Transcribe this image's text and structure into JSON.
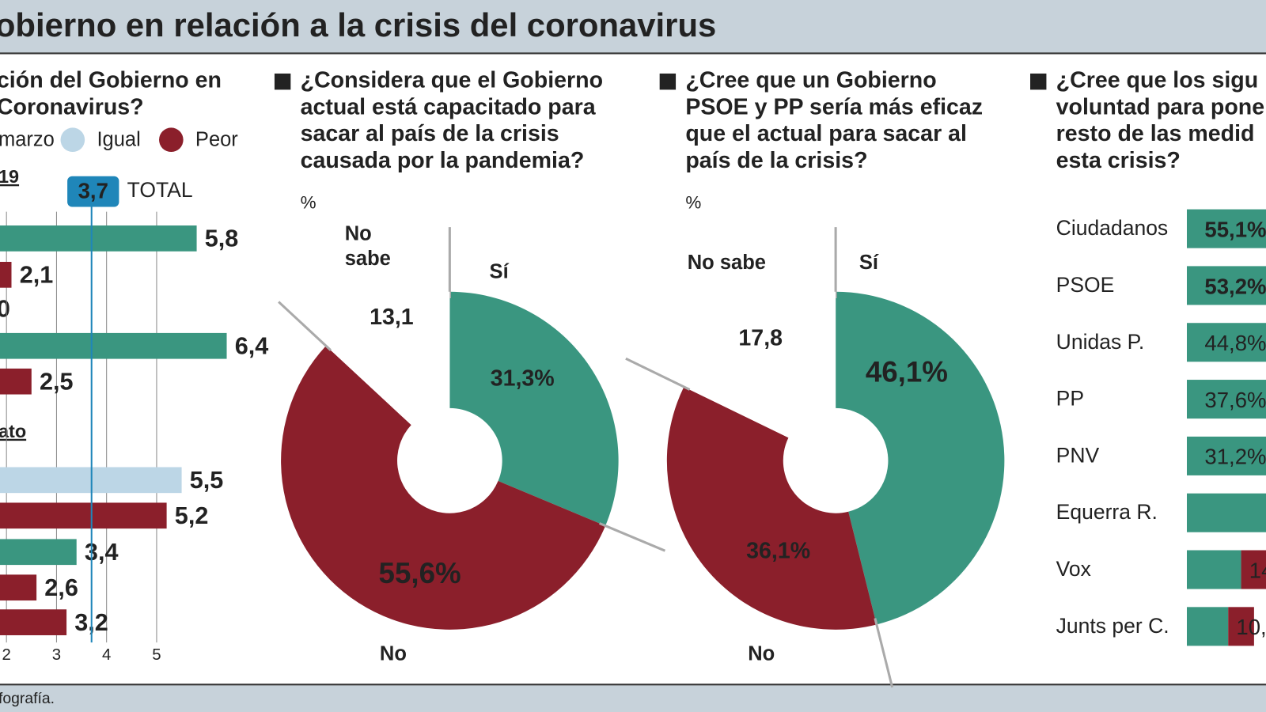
{
  "header": {
    "title": "obierno en relación a la crisis del coronavirus"
  },
  "footer": {
    "source": "fografía."
  },
  "chart_data": [
    {
      "type": "hbar",
      "title_lines": [
        "ción del Gobierno en",
        "Coronavirus?"
      ],
      "legend": [
        {
          "name": "marzo",
          "color": "#3a9680"
        },
        {
          "name": "Igual",
          "color": "#bcd6e6"
        },
        {
          "name": "Peor",
          "color": "#8b1f2b"
        }
      ],
      "section_labels": [
        "19",
        "ato"
      ],
      "annotations": [
        "0"
      ],
      "categories": [
        null,
        null,
        null,
        null,
        null,
        null,
        null,
        null,
        null
      ],
      "values": [
        5.8,
        2.1,
        6.4,
        2.5,
        5.5,
        5.2,
        3.4,
        2.6,
        3.2
      ],
      "value_labels": [
        "5,8",
        "2,1",
        "6,4",
        "2,5",
        "5,5",
        "5,2",
        "3,4",
        "2,6",
        "3,2"
      ],
      "colors": [
        "#3a9680",
        "#8b1f2b",
        "#3a9680",
        "#8b1f2b",
        "#bcd6e6",
        "#8b1f2b",
        "#3a9680",
        "#8b1f2b",
        "#8b1f2b"
      ],
      "xlim": [
        0,
        7
      ],
      "xticks": [
        2,
        3,
        4,
        5
      ],
      "grid": true,
      "reference": {
        "value": 3.7,
        "label": "3,7",
        "text": "TOTAL",
        "color": "#1f86b9"
      }
    },
    {
      "type": "donut",
      "title_lines": [
        "¿Considera que el Gobierno",
        "actual está capacitado para",
        "sacar al país de la crisis",
        "causada por la pandemia?"
      ],
      "unit": "%",
      "categories": [
        "Sí",
        "No",
        "No sabe"
      ],
      "values": [
        31.3,
        55.6,
        13.1
      ],
      "value_labels": [
        "31,3%",
        "55,6%",
        "13,1"
      ],
      "colors": [
        "#3a9680",
        "#8b1f2b",
        null
      ]
    },
    {
      "type": "donut",
      "title_lines": [
        "¿Cree que un Gobierno",
        "PSOE y PP sería más eficaz",
        "que el actual para sacar al",
        "país de la crisis?"
      ],
      "unit": "%",
      "categories": [
        "Sí",
        "No",
        "No sabe"
      ],
      "values": [
        46.1,
        36.1,
        17.8
      ],
      "value_labels": [
        "46,1%",
        "36,1%",
        "17,8"
      ],
      "colors": [
        "#3a9680",
        "#8b1f2b",
        null
      ]
    },
    {
      "type": "stacked_hbar",
      "title_lines": [
        "¿Cree que los sigu",
        "voluntad para pone",
        "resto de las medid",
        "esta crisis?"
      ],
      "categories": [
        "Ciudadanos",
        "PSOE",
        "Unidas P.",
        "PP",
        "PNV",
        "Equerra R.",
        "Vox",
        "Junts per C."
      ],
      "series": [
        {
          "color": "#3a9680",
          "values": [
            55.1,
            53.2,
            44.8,
            37.6,
            31.2,
            31,
            21,
            16
          ],
          "value_labels": [
            "55,1%",
            "53,2%",
            "44,8%",
            "37,6%",
            "31,2%",
            null,
            null,
            null
          ]
        },
        {
          "color": "#8b1f2b",
          "values": [
            null,
            null,
            null,
            null,
            null,
            null,
            14,
            10
          ],
          "value_labels": [
            null,
            null,
            null,
            null,
            null,
            null,
            "14",
            "10,"
          ]
        }
      ],
      "xlim": [
        0,
        100
      ]
    }
  ]
}
